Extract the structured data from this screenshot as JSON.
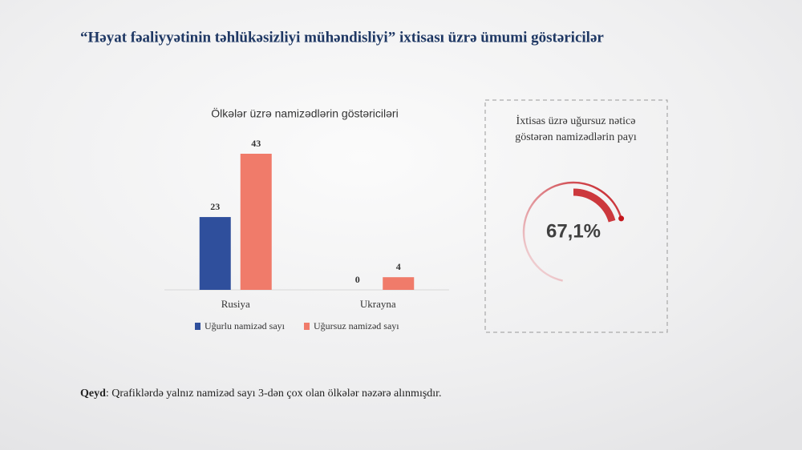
{
  "title": "“Həyat fəaliyyətinin təhlükəsizliyi mühəndisliyi” ixtisası üzrə ümumi göstəricilər",
  "note": {
    "label": "Qeyd",
    "text": ": Qrafiklərdə yalnız namizəd sayı 3-dən çox olan ölkələr nəzərə alınmışdır."
  },
  "chart_data": [
    {
      "type": "bar",
      "title": "Ölkələr üzrə namizədlərin göstəriciləri",
      "categories": [
        "Rusiya",
        "Ukrayna"
      ],
      "series": [
        {
          "name": "Uğurlu namizəd sayı",
          "color": "#2f4f9c",
          "values": [
            23,
            0
          ]
        },
        {
          "name": "Uğursuz namizəd sayı",
          "color": "#f07b6a",
          "values": [
            43,
            4
          ]
        }
      ]
    },
    {
      "type": "gauge",
      "title": "İxtisas üzrə uğursuz nəticə göstərən namizədlərin payı",
      "values": [
        67.1
      ],
      "value_labels": [
        "67,1%"
      ],
      "color": "#c4161c"
    }
  ]
}
